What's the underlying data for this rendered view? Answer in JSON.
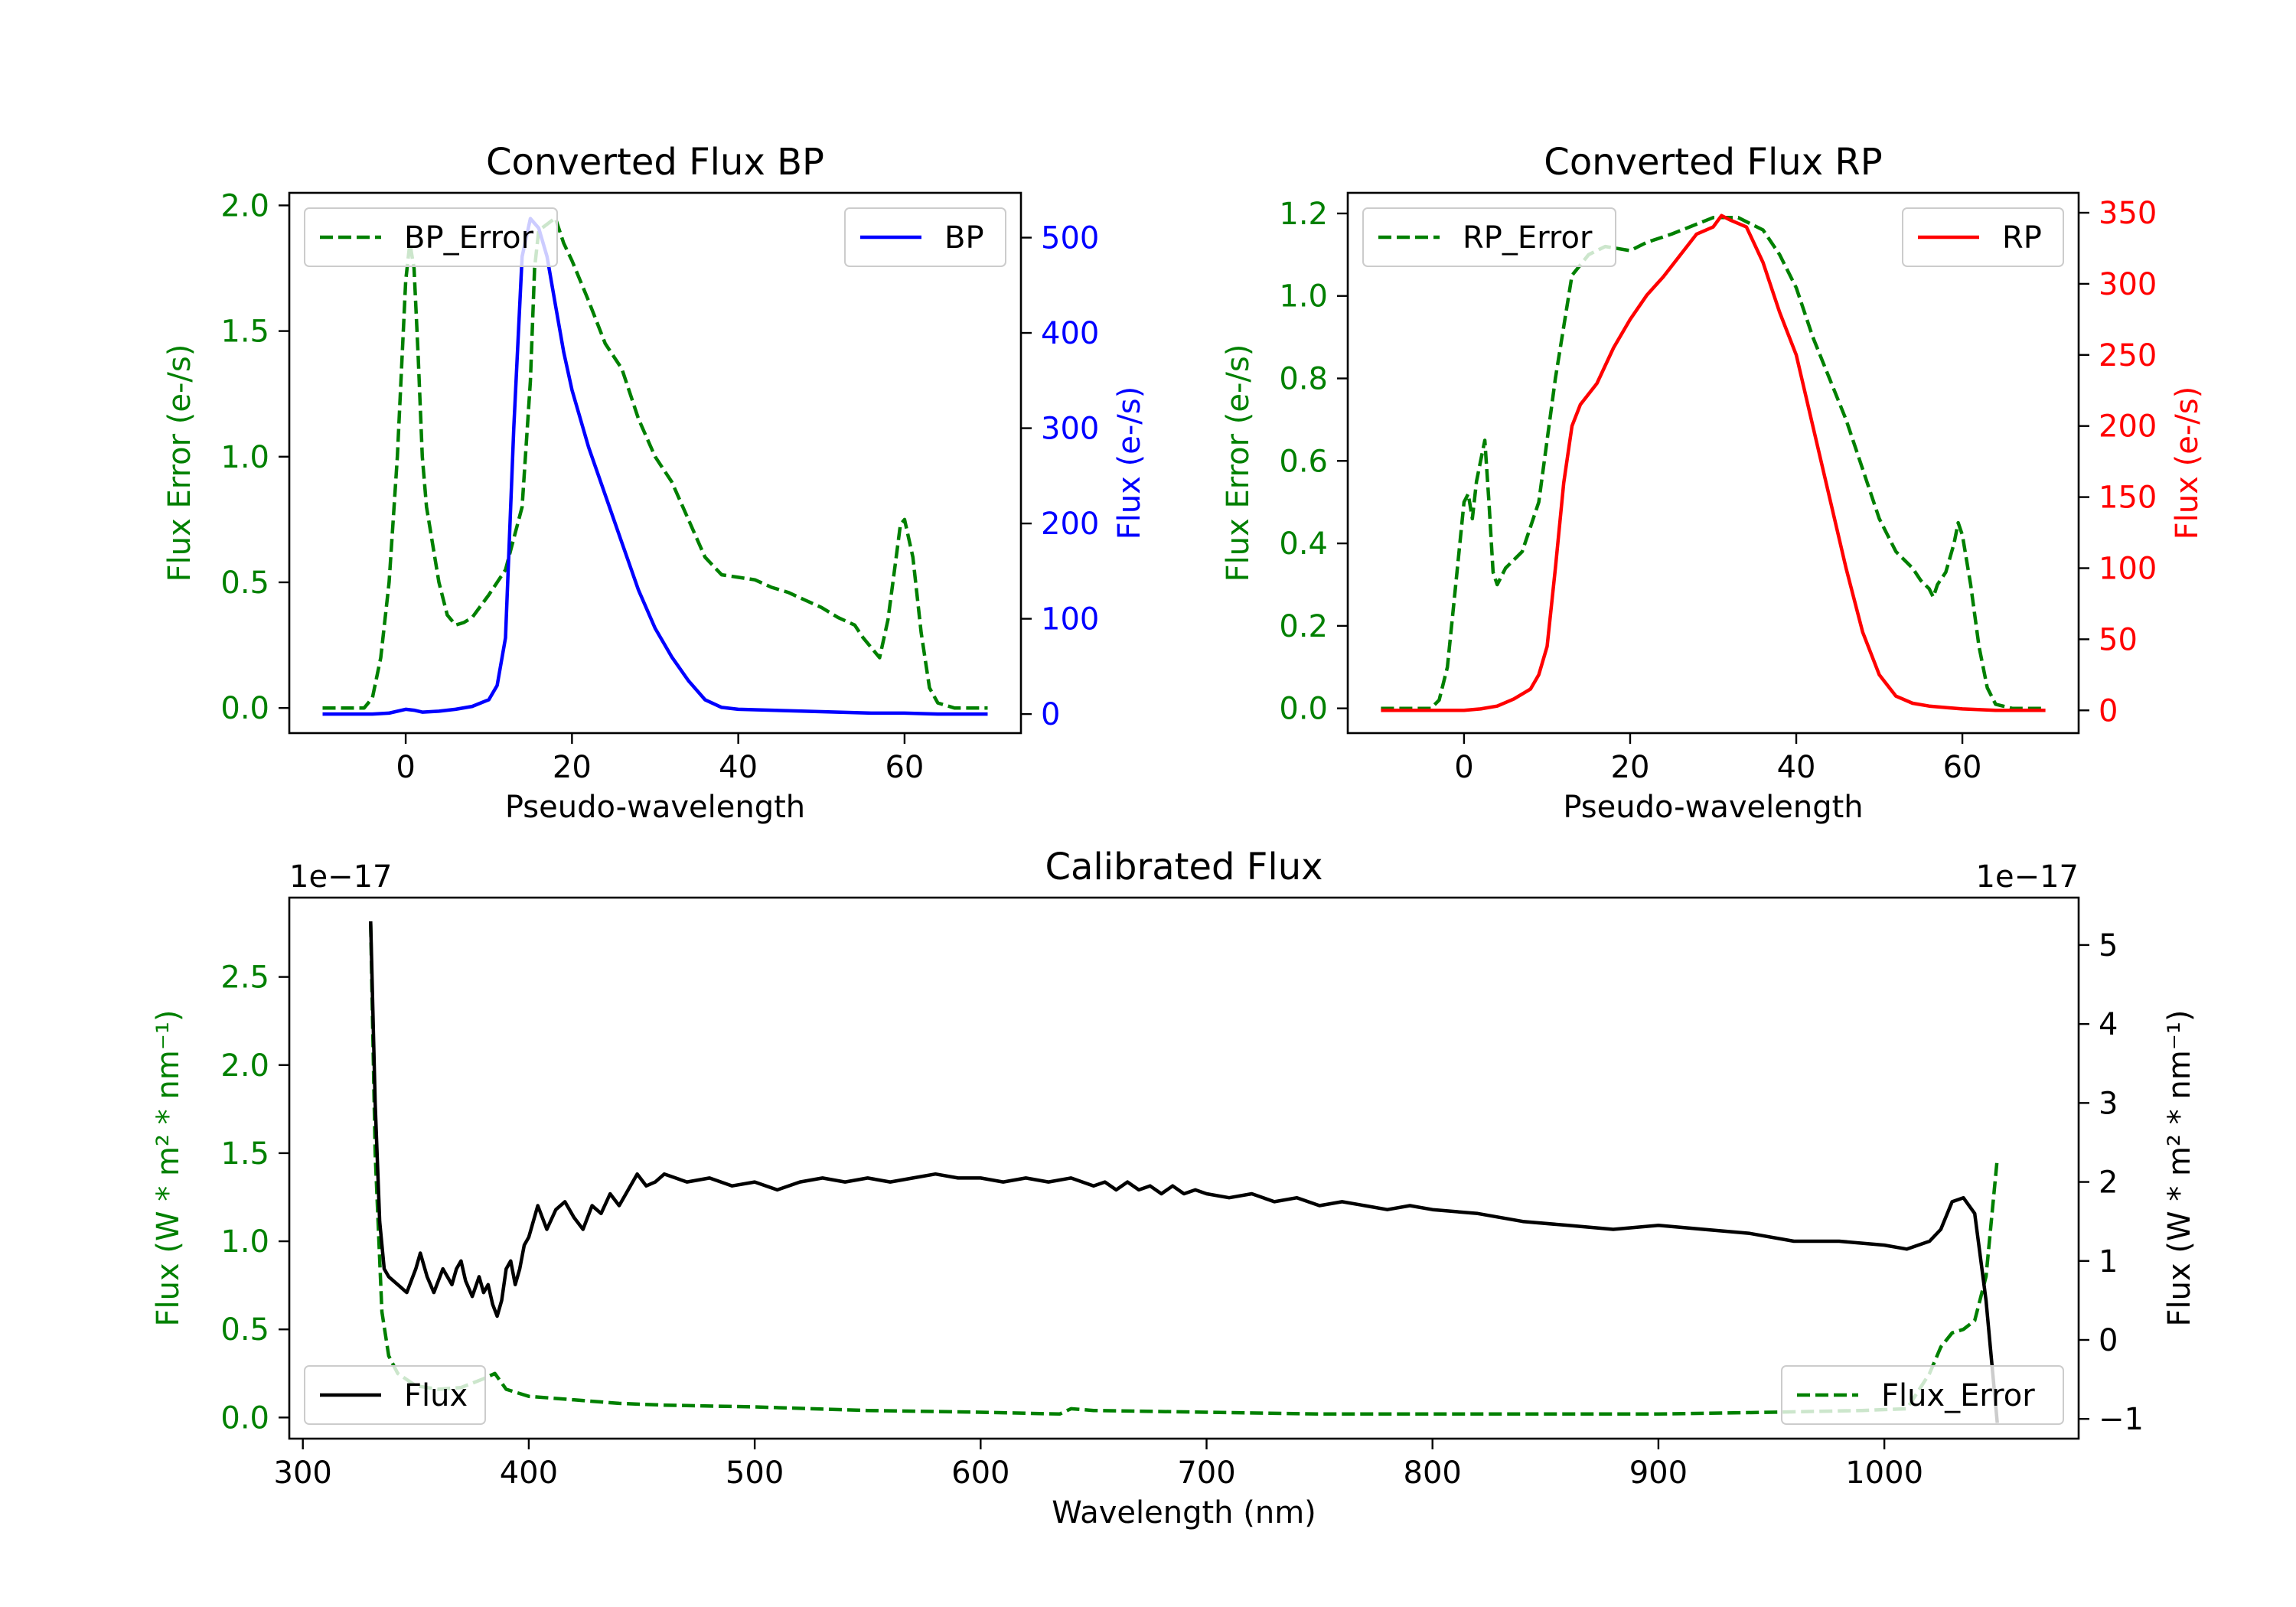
{
  "chart_data": [
    {
      "type": "line",
      "id": "bp",
      "title": "Converted Flux BP",
      "xlabel": "Pseudo-wavelength",
      "xlim": [
        -14,
        74
      ],
      "xticks": [
        0,
        20,
        40,
        60
      ],
      "left_axis": {
        "label": "Flux Error (e-/s)",
        "color": "#008000",
        "ylim": [
          -0.1,
          2.05
        ],
        "ticks": [
          0.0,
          0.5,
          1.0,
          1.5,
          2.0
        ],
        "tick_decimals": 1
      },
      "right_axis": {
        "label": "Flux (e-/s)",
        "color": "#0000ff",
        "ylim": [
          -20,
          547
        ],
        "ticks": [
          0,
          100,
          200,
          300,
          400,
          500
        ],
        "tick_decimals": 0
      },
      "series": [
        {
          "name": "BP_Error",
          "axis": "left",
          "color": "#008000",
          "dash": true,
          "legend": "top-left",
          "x": [
            -10,
            -5,
            -4,
            -3,
            -2,
            -1,
            0,
            0.5,
            1,
            1.5,
            2,
            2.5,
            3,
            4,
            5,
            6,
            7,
            8,
            10,
            12,
            14,
            15,
            15.5,
            16,
            18,
            19,
            20,
            22,
            24,
            26,
            28,
            30,
            32,
            34,
            36,
            38,
            40,
            42,
            44,
            46,
            48,
            50,
            52,
            54,
            55,
            56,
            57,
            58,
            59,
            59.5,
            60,
            61,
            62,
            63,
            64,
            66,
            70
          ],
          "y": [
            0.0,
            0.0,
            0.04,
            0.2,
            0.5,
            1.0,
            1.7,
            1.85,
            1.75,
            1.4,
            1.0,
            0.8,
            0.7,
            0.5,
            0.37,
            0.33,
            0.34,
            0.36,
            0.45,
            0.55,
            0.8,
            1.3,
            1.75,
            1.9,
            1.95,
            1.85,
            1.78,
            1.62,
            1.45,
            1.35,
            1.15,
            1.0,
            0.9,
            0.75,
            0.6,
            0.53,
            0.52,
            0.51,
            0.48,
            0.46,
            0.43,
            0.4,
            0.36,
            0.33,
            0.28,
            0.24,
            0.2,
            0.35,
            0.6,
            0.73,
            0.75,
            0.6,
            0.3,
            0.08,
            0.02,
            0.0,
            0.0
          ]
        },
        {
          "name": "BP",
          "axis": "right",
          "color": "#0000ff",
          "dash": false,
          "legend": "top-right",
          "x": [
            -10,
            -6,
            -4,
            -2,
            0,
            1,
            2,
            4,
            6,
            8,
            10,
            11,
            12,
            13,
            14,
            15,
            16,
            17,
            18,
            19,
            20,
            22,
            24,
            26,
            28,
            30,
            32,
            34,
            36,
            38,
            40,
            44,
            48,
            52,
            56,
            60,
            64,
            70
          ],
          "y": [
            0,
            0,
            0,
            1,
            5,
            4,
            2,
            3,
            5,
            8,
            15,
            30,
            80,
            300,
            480,
            520,
            510,
            480,
            430,
            380,
            340,
            280,
            230,
            180,
            130,
            90,
            60,
            35,
            15,
            7,
            5,
            4,
            3,
            2,
            1,
            1,
            0,
            0
          ]
        }
      ]
    },
    {
      "type": "line",
      "id": "rp",
      "title": "Converted Flux RP",
      "xlabel": "Pseudo-wavelength",
      "xlim": [
        -14,
        74
      ],
      "xticks": [
        0,
        20,
        40,
        60
      ],
      "left_axis": {
        "label": "Flux Error (e-/s)",
        "color": "#008000",
        "ylim": [
          -0.06,
          1.25
        ],
        "ticks": [
          0.0,
          0.2,
          0.4,
          0.6,
          0.8,
          1.0,
          1.2
        ],
        "tick_decimals": 1
      },
      "right_axis": {
        "label": "Flux (e-/s)",
        "color": "#ff0000",
        "ylim": [
          -16,
          364
        ],
        "ticks": [
          0,
          50,
          100,
          150,
          200,
          250,
          300,
          350
        ],
        "tick_decimals": 0
      },
      "series": [
        {
          "name": "RP_Error",
          "axis": "left",
          "color": "#008000",
          "dash": true,
          "legend": "top-left",
          "x": [
            -10,
            -4,
            -3,
            -2,
            -1,
            0,
            0.5,
            1,
            1.5,
            2,
            2.5,
            3,
            3.5,
            4,
            5,
            7,
            9,
            11,
            13,
            15,
            17,
            20,
            22,
            25,
            30,
            33,
            36,
            38,
            40,
            42,
            44,
            46,
            48,
            50,
            52,
            54,
            55,
            56,
            56.5,
            57,
            58,
            59,
            59.5,
            60,
            61,
            62,
            63,
            64,
            66,
            70
          ],
          "y": [
            0.0,
            0.0,
            0.02,
            0.1,
            0.3,
            0.5,
            0.52,
            0.46,
            0.55,
            0.6,
            0.65,
            0.5,
            0.33,
            0.3,
            0.34,
            0.38,
            0.5,
            0.8,
            1.05,
            1.1,
            1.12,
            1.11,
            1.13,
            1.15,
            1.19,
            1.19,
            1.16,
            1.1,
            1.02,
            0.9,
            0.8,
            0.7,
            0.58,
            0.46,
            0.38,
            0.34,
            0.31,
            0.29,
            0.27,
            0.3,
            0.33,
            0.4,
            0.45,
            0.42,
            0.3,
            0.15,
            0.05,
            0.01,
            0.0,
            0.0
          ]
        },
        {
          "name": "RP",
          "axis": "right",
          "color": "#ff0000",
          "dash": false,
          "legend": "top-right",
          "x": [
            -10,
            -4,
            0,
            2,
            4,
            6,
            8,
            9,
            10,
            11,
            12,
            13,
            14,
            16,
            18,
            20,
            22,
            24,
            26,
            28,
            30,
            31,
            32,
            34,
            36,
            38,
            40,
            42,
            44,
            46,
            48,
            50,
            52,
            54,
            56,
            58,
            60,
            64,
            70
          ],
          "y": [
            0,
            0,
            0,
            1,
            3,
            8,
            15,
            25,
            45,
            100,
            160,
            200,
            215,
            230,
            255,
            275,
            292,
            305,
            320,
            335,
            340,
            348,
            345,
            340,
            315,
            280,
            250,
            200,
            150,
            100,
            55,
            25,
            10,
            5,
            3,
            2,
            1,
            0,
            0
          ]
        }
      ]
    },
    {
      "type": "line",
      "id": "cal",
      "title": "Calibrated Flux",
      "xlabel": "Wavelength (nm)",
      "xlim": [
        294,
        1086
      ],
      "xticks": [
        300,
        400,
        500,
        600,
        700,
        800,
        900,
        1000
      ],
      "left_axis": {
        "label": "Flux (W * m² * nm⁻¹)",
        "color": "#008000",
        "offset": "1e−17",
        "ylim": [
          -0.12,
          2.95
        ],
        "ticks": [
          0.0,
          0.5,
          1.0,
          1.5,
          2.0,
          2.5
        ],
        "tick_decimals": 1
      },
      "right_axis": {
        "label": "Flux (W * m² * nm⁻¹)",
        "color": "#000000",
        "offset": "1e−17",
        "ylim": [
          -1.25,
          5.6
        ],
        "ticks": [
          -1,
          0,
          1,
          2,
          3,
          4,
          5
        ],
        "tick_decimals": 0
      },
      "series": [
        {
          "name": "Flux_Error",
          "axis": "left",
          "color": "#008000",
          "dash": true,
          "legend": "bottom-right",
          "x": [
            330,
            332,
            335,
            338,
            342,
            350,
            360,
            370,
            380,
            385,
            390,
            400,
            420,
            440,
            460,
            500,
            550,
            600,
            635,
            640,
            650,
            700,
            750,
            800,
            850,
            900,
            950,
            990,
            1010,
            1020,
            1025,
            1030,
            1035,
            1040,
            1045,
            1050
          ],
          "y": [
            2.8,
            1.5,
            0.6,
            0.35,
            0.25,
            0.18,
            0.16,
            0.17,
            0.22,
            0.25,
            0.16,
            0.12,
            0.1,
            0.08,
            0.07,
            0.06,
            0.04,
            0.03,
            0.02,
            0.05,
            0.04,
            0.03,
            0.02,
            0.02,
            0.02,
            0.02,
            0.03,
            0.04,
            0.05,
            0.25,
            0.4,
            0.48,
            0.5,
            0.55,
            0.8,
            1.47
          ]
        },
        {
          "name": "Flux",
          "axis": "right",
          "color": "#000000",
          "dash": false,
          "legend": "bottom-left",
          "x": [
            330,
            332,
            334,
            336,
            338,
            342,
            346,
            350,
            352,
            355,
            358,
            362,
            366,
            368,
            370,
            372,
            375,
            378,
            380,
            382,
            384,
            386,
            388,
            390,
            392,
            394,
            396,
            398,
            400,
            404,
            408,
            412,
            416,
            420,
            424,
            428,
            432,
            436,
            440,
            444,
            448,
            452,
            456,
            460,
            465,
            470,
            480,
            490,
            500,
            510,
            520,
            530,
            540,
            550,
            560,
            570,
            580,
            590,
            600,
            610,
            620,
            630,
            640,
            650,
            655,
            660,
            665,
            670,
            675,
            680,
            685,
            690,
            695,
            700,
            710,
            720,
            730,
            740,
            750,
            760,
            770,
            780,
            790,
            800,
            820,
            840,
            860,
            880,
            900,
            920,
            940,
            960,
            980,
            1000,
            1010,
            1020,
            1025,
            1030,
            1035,
            1040,
            1045,
            1050
          ],
          "y": [
            5.3,
            3.0,
            1.5,
            0.9,
            0.8,
            0.7,
            0.6,
            0.9,
            1.1,
            0.8,
            0.6,
            0.9,
            0.7,
            0.9,
            1.0,
            0.75,
            0.55,
            0.8,
            0.6,
            0.7,
            0.45,
            0.3,
            0.5,
            0.9,
            1.0,
            0.7,
            0.9,
            1.2,
            1.3,
            1.7,
            1.4,
            1.65,
            1.75,
            1.55,
            1.4,
            1.7,
            1.6,
            1.85,
            1.7,
            1.9,
            2.1,
            1.95,
            2.0,
            2.1,
            2.05,
            2.0,
            2.05,
            1.95,
            2.0,
            1.9,
            2.0,
            2.05,
            2.0,
            2.05,
            2.0,
            2.05,
            2.1,
            2.05,
            2.05,
            2.0,
            2.05,
            2.0,
            2.05,
            1.95,
            2.0,
            1.9,
            2.0,
            1.9,
            1.95,
            1.85,
            1.95,
            1.85,
            1.9,
            1.85,
            1.8,
            1.85,
            1.75,
            1.8,
            1.7,
            1.75,
            1.7,
            1.65,
            1.7,
            1.65,
            1.6,
            1.5,
            1.45,
            1.4,
            1.45,
            1.4,
            1.35,
            1.25,
            1.25,
            1.2,
            1.15,
            1.25,
            1.4,
            1.75,
            1.8,
            1.6,
            0.5,
            -1.05
          ]
        }
      ]
    }
  ]
}
